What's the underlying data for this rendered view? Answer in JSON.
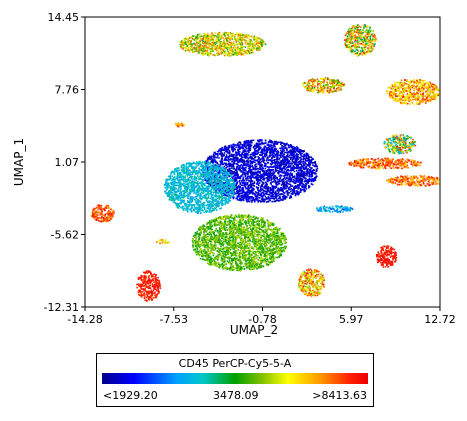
{
  "chart_data": {
    "type": "scatter",
    "title": "",
    "xlabel": "UMAP_2",
    "ylabel": "UMAP_1",
    "xlim": [
      -14.28,
      12.72
    ],
    "ylim": [
      -12.31,
      14.45
    ],
    "x_ticks": [
      "-14.28",
      "-7.53",
      "-0.78",
      "5.97",
      "12.72"
    ],
    "x_tick_values": [
      -14.28,
      -7.53,
      -0.78,
      5.97,
      12.72
    ],
    "y_ticks": [
      "14.45",
      "7.76",
      "1.07",
      "-5.62",
      "-12.31"
    ],
    "y_tick_values": [
      14.45,
      7.76,
      1.07,
      -5.62,
      -12.31
    ],
    "grid": false,
    "color_scale": {
      "title": "CD45 PerCP-Cy5-5-A",
      "min_label": "<1929.20",
      "mid_label": "3478.09",
      "max_label": ">8413.63",
      "colors": [
        "#00008b",
        "#0000ff",
        "#00a0ff",
        "#00c8c8",
        "#00a000",
        "#80c000",
        "#ffff00",
        "#ff9900",
        "#ff2200",
        "#ee0000"
      ]
    },
    "clusters": [
      {
        "name": "main-blob-blue",
        "center": [
          -1.0,
          0.3
        ],
        "spread": [
          4.4,
          2.9
        ],
        "color_range": [
          0.02,
          0.12
        ]
      },
      {
        "name": "main-blob-cyan",
        "center": [
          -5.6,
          -1.2
        ],
        "spread": [
          2.7,
          2.4
        ],
        "color_range": [
          0.22,
          0.38
        ]
      },
      {
        "name": "main-blob-green",
        "center": [
          -2.6,
          -6.3
        ],
        "spread": [
          3.6,
          2.6
        ],
        "color_range": [
          0.42,
          0.62
        ]
      },
      {
        "name": "top-left-island",
        "center": [
          -3.9,
          12.0
        ],
        "spread": [
          3.3,
          1.1
        ],
        "color_range": [
          0.45,
          0.85
        ]
      },
      {
        "name": "top-center-island",
        "center": [
          6.6,
          12.4
        ],
        "spread": [
          1.2,
          1.5
        ],
        "color_range": [
          0.35,
          0.92
        ]
      },
      {
        "name": "upper-middle-island",
        "center": [
          3.8,
          8.2
        ],
        "spread": [
          1.6,
          0.7
        ],
        "color_range": [
          0.45,
          0.92
        ]
      },
      {
        "name": "upper-right-island",
        "center": [
          10.6,
          7.6
        ],
        "spread": [
          2.0,
          1.2
        ],
        "color_range": [
          0.6,
          0.9
        ]
      },
      {
        "name": "right-mid-island",
        "center": [
          9.6,
          2.8
        ],
        "spread": [
          1.2,
          0.9
        ],
        "color_range": [
          0.2,
          0.9
        ]
      },
      {
        "name": "right-streak-1",
        "center": [
          8.5,
          1.0
        ],
        "spread": [
          2.8,
          0.5
        ],
        "color_range": [
          0.7,
          0.95
        ]
      },
      {
        "name": "right-streak-2",
        "center": [
          10.8,
          -0.6
        ],
        "spread": [
          2.2,
          0.5
        ],
        "color_range": [
          0.7,
          0.95
        ]
      },
      {
        "name": "small-upper-left",
        "center": [
          -7.1,
          4.6
        ],
        "spread": [
          0.4,
          0.2
        ],
        "color_range": [
          0.7,
          0.9
        ]
      },
      {
        "name": "left-island",
        "center": [
          -13.0,
          -3.6
        ],
        "spread": [
          0.9,
          0.8
        ],
        "color_range": [
          0.75,
          0.95
        ]
      },
      {
        "name": "small-left-mid",
        "center": [
          -8.4,
          -6.2
        ],
        "spread": [
          0.5,
          0.2
        ],
        "color_range": [
          0.6,
          0.85
        ]
      },
      {
        "name": "bottom-left-island",
        "center": [
          -9.5,
          -10.3
        ],
        "spread": [
          0.9,
          1.4
        ],
        "color_range": [
          0.85,
          0.98
        ]
      },
      {
        "name": "bottom-center-island",
        "center": [
          2.9,
          -10.0
        ],
        "spread": [
          1.0,
          1.3
        ],
        "color_range": [
          0.55,
          0.92
        ]
      },
      {
        "name": "bottom-right-island",
        "center": [
          8.6,
          -7.6
        ],
        "spread": [
          0.8,
          1.0
        ],
        "color_range": [
          0.88,
          0.98
        ]
      },
      {
        "name": "tail-streak",
        "center": [
          4.6,
          -3.2
        ],
        "spread": [
          1.4,
          0.3
        ],
        "color_range": [
          0.15,
          0.35
        ]
      }
    ]
  }
}
